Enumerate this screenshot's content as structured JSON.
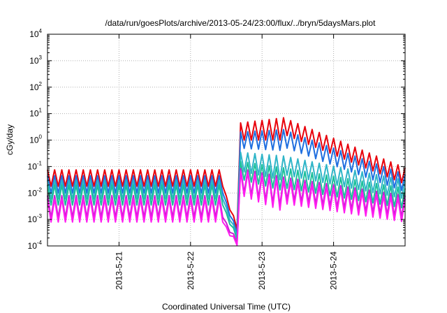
{
  "chart_data": {
    "type": "line",
    "title": "/data/run/goesPlots/archive/2013-05-24/23:00/flux/../bryn/5daysMars.plot",
    "xlabel": "Coordinated Universal Time (UTC)",
    "ylabel": "cGy/day",
    "yscale": "log",
    "ylim": [
      0.0001,
      10000
    ],
    "xlim_days": [
      0,
      5
    ],
    "y_ticks": [
      {
        "base": "10",
        "exp": "-4"
      },
      {
        "base": "10",
        "exp": "-3"
      },
      {
        "base": "10",
        "exp": "-2"
      },
      {
        "base": "10",
        "exp": "-1"
      },
      {
        "base": "10",
        "exp": "0"
      },
      {
        "base": "10",
        "exp": "1"
      },
      {
        "base": "10",
        "exp": "2"
      },
      {
        "base": "10",
        "exp": "3"
      },
      {
        "base": "10",
        "exp": "4"
      }
    ],
    "x_ticks": [
      "2013-5-21",
      "2013-5-22",
      "2013-5-23",
      "2013-5-24"
    ],
    "x_tick_positions_days": [
      1,
      2,
      3,
      4
    ],
    "grid": true,
    "series": [
      {
        "color": "#e8000b",
        "pre_peak": 0.075,
        "pre_trough": 0.018,
        "event_peak": 7.0,
        "event_trough": 1.0,
        "end_peak": 0.09,
        "dip": 0.0006
      },
      {
        "color": "#1f6fe0",
        "pre_peak": 0.045,
        "pre_trough": 0.01,
        "event_peak": 2.5,
        "event_trough": 0.4,
        "end_peak": 0.05,
        "dip": 0.0004
      },
      {
        "color": "#2fb5c8",
        "pre_peak": 0.03,
        "pre_trough": 0.006,
        "event_peak": 0.25,
        "event_trough": 0.03,
        "end_peak": 0.03,
        "dip": 0.0003
      },
      {
        "color": "#1bbf9a",
        "pre_peak": 0.02,
        "pre_trough": 0.0035,
        "event_peak": 0.09,
        "event_trough": 0.012,
        "end_peak": 0.015,
        "dip": 0.00025
      },
      {
        "color": "#c81fd2",
        "pre_peak": 0.008,
        "pre_trough": 0.0012,
        "event_peak": 0.04,
        "event_trough": 0.003,
        "end_peak": 0.008,
        "dip": 0.00018
      },
      {
        "color": "#ff1cf0",
        "pre_peak": 0.006,
        "pre_trough": 0.0008,
        "event_peak": 0.03,
        "event_trough": 0.002,
        "end_peak": 0.006,
        "dip": 0.00015
      }
    ]
  }
}
